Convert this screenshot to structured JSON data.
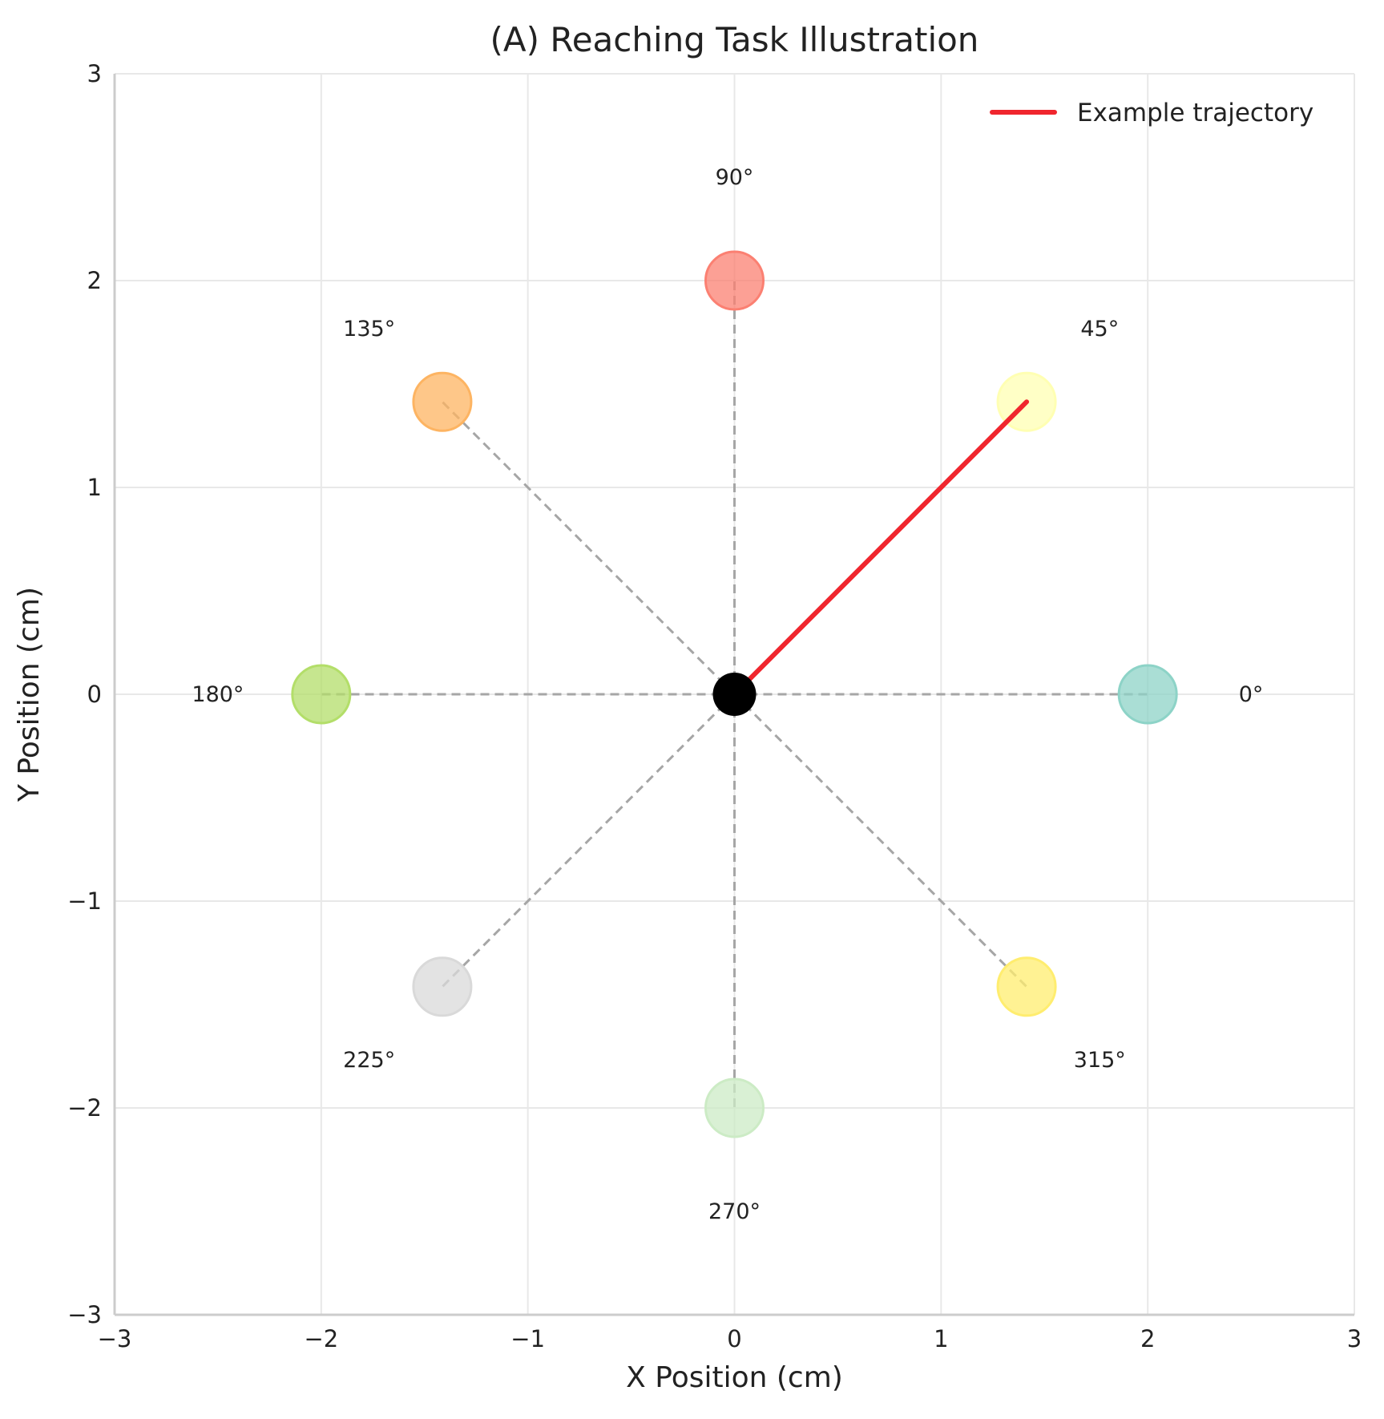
{
  "chart_data": {
    "type": "scatter",
    "title": "(A) Reaching Task Illustration",
    "xlabel": "X Position (cm)",
    "ylabel": "Y Position (cm)",
    "xlim": [
      -3,
      3
    ],
    "ylim": [
      -3,
      3
    ],
    "xticks": [
      "−3",
      "−2",
      "−1",
      "0",
      "1",
      "2",
      "3"
    ],
    "yticks": [
      "−3",
      "−2",
      "−1",
      "0",
      "1",
      "2",
      "3"
    ],
    "grid": true,
    "legend_position": "top-right",
    "center": {
      "x": 0,
      "y": 0,
      "color": "#000000"
    },
    "targets": [
      {
        "angle": 0,
        "label": "0°",
        "x": 2.0,
        "y": 0.0,
        "color": "#8dd3c7"
      },
      {
        "angle": 45,
        "label": "45°",
        "x": 1.414,
        "y": 1.414,
        "color": "#ffffb3"
      },
      {
        "angle": 90,
        "label": "90°",
        "x": 0.0,
        "y": 2.0,
        "color": "#fb8072"
      },
      {
        "angle": 135,
        "label": "135°",
        "x": -1.414,
        "y": 1.414,
        "color": "#fdb462"
      },
      {
        "angle": 180,
        "label": "180°",
        "x": -2.0,
        "y": 0.0,
        "color": "#b3de69"
      },
      {
        "angle": 225,
        "label": "225°",
        "x": -1.414,
        "y": -1.414,
        "color": "#d9d9d9"
      },
      {
        "angle": 270,
        "label": "270°",
        "x": 0.0,
        "y": -2.0,
        "color": "#ccebc5"
      },
      {
        "angle": 315,
        "label": "315°",
        "x": 1.414,
        "y": -1.414,
        "color": "#ffed6f"
      }
    ],
    "series": [
      {
        "name": "Example trajectory",
        "color": "#f0262e",
        "x": [
          0,
          1.414
        ],
        "y": [
          0,
          1.414
        ]
      }
    ]
  }
}
